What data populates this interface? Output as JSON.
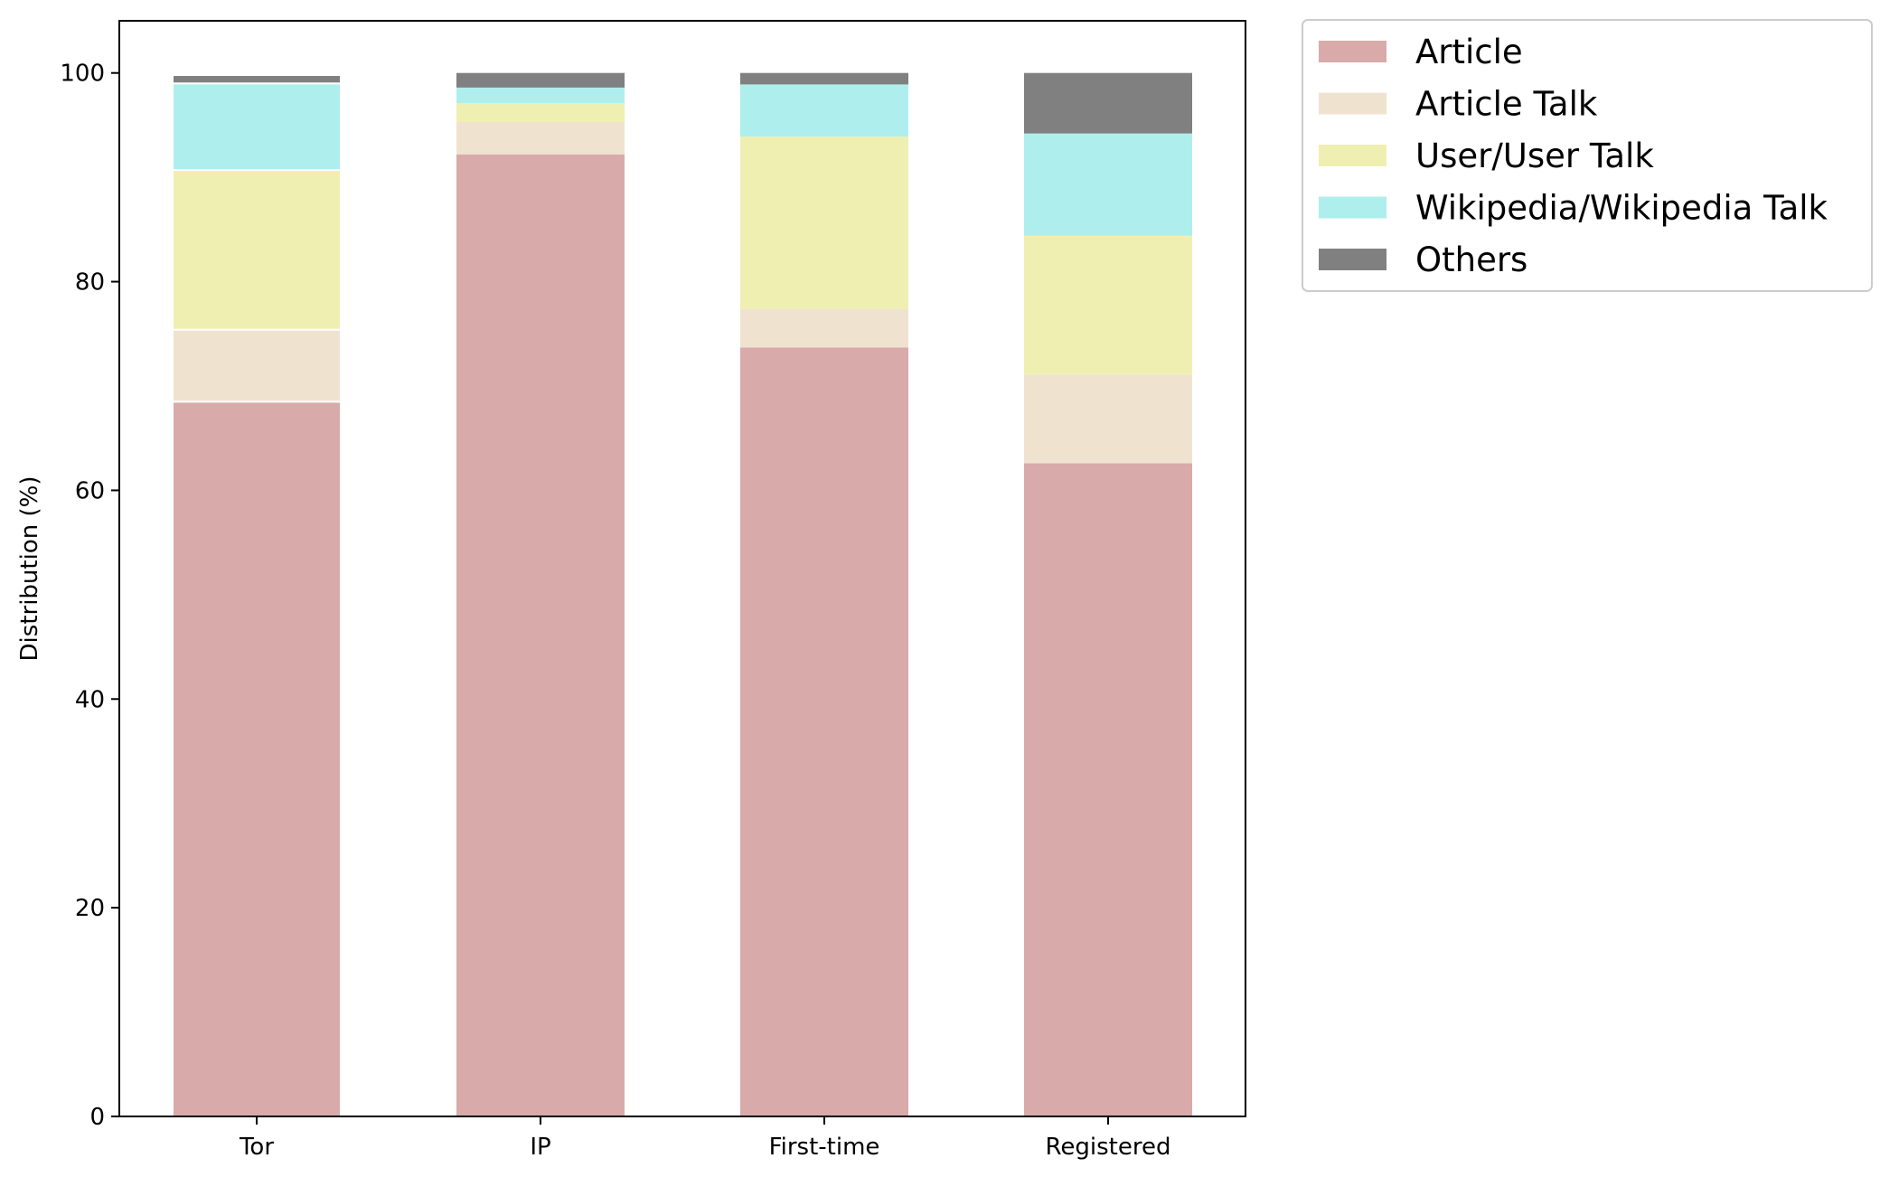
{
  "chart_data": {
    "type": "bar",
    "stacked": true,
    "title": "",
    "xlabel": "",
    "ylabel": "Distribution (%)",
    "ylim": [
      0,
      105
    ],
    "yticks": [
      0,
      20,
      40,
      60,
      80,
      100
    ],
    "grid": false,
    "legend_position": "outside-top-right",
    "categories": [
      "Tor",
      "IP",
      "First-time",
      "Registered"
    ],
    "series": [
      {
        "name": "Article",
        "color": "#d9aaaa",
        "values": [
          68.5,
          92.2,
          73.7,
          62.6
        ]
      },
      {
        "name": "Article Talk",
        "color": "#efe3d0",
        "values": [
          6.9,
          3.1,
          3.7,
          8.5
        ]
      },
      {
        "name": "User/User Talk",
        "color": "#f0efb2",
        "values": [
          15.3,
          1.8,
          16.5,
          13.3
        ]
      },
      {
        "name": "Wikipedia/Wikipedia Talk",
        "color": "#aeefee",
        "values": [
          8.3,
          1.5,
          5.0,
          9.8
        ]
      },
      {
        "name": "Others",
        "color": "#808080",
        "values": [
          0.8,
          1.4,
          1.1,
          5.8
        ]
      }
    ]
  }
}
